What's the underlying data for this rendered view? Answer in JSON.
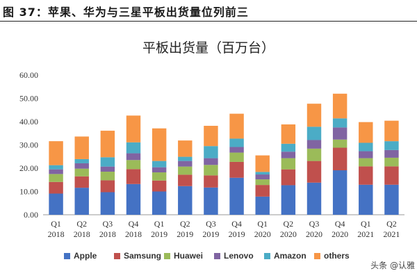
{
  "figure": {
    "title": "图 37：苹果、华为与三星平板出货量位列前三"
  },
  "watermark": "头条 @认雅",
  "chart_data": {
    "type": "bar",
    "stacked": true,
    "title": "平板出货量（百万台）",
    "xlabel": "",
    "ylabel": "",
    "ylim": [
      0,
      60
    ],
    "yticks": [
      "0.00",
      "10.00",
      "20.00",
      "30.00",
      "40.00",
      "50.00",
      "60.00"
    ],
    "grid": false,
    "legend_position": "bottom",
    "categories": [
      [
        "Q1",
        "2018"
      ],
      [
        "Q2",
        "2018"
      ],
      [
        "Q3",
        "2018"
      ],
      [
        "Q4",
        "2018"
      ],
      [
        "Q1",
        "2019"
      ],
      [
        "Q2",
        "2019"
      ],
      [
        "Q3",
        "2019"
      ],
      [
        "Q4",
        "2019"
      ],
      [
        "Q1",
        "2020"
      ],
      [
        "Q2",
        "2020"
      ],
      [
        "Q3",
        "2020"
      ],
      [
        "Q4",
        "2020"
      ],
      [
        "Q1",
        "2021"
      ],
      [
        "Q2",
        "2021"
      ]
    ],
    "series": [
      {
        "name": "Apple",
        "color": "#4472C4",
        "values": [
          9.1,
          11.6,
          9.7,
          13.2,
          10.0,
          12.3,
          11.7,
          15.9,
          7.8,
          12.7,
          13.8,
          19.1,
          12.9,
          12.9
        ]
      },
      {
        "name": "Samsung",
        "color": "#C0504D",
        "values": [
          5.0,
          4.9,
          5.1,
          6.4,
          4.7,
          4.9,
          5.2,
          6.8,
          5.0,
          6.8,
          9.3,
          9.7,
          7.9,
          7.9
        ]
      },
      {
        "name": "Huawei",
        "color": "#9BBB59",
        "values": [
          3.4,
          3.3,
          3.7,
          3.9,
          3.5,
          3.5,
          4.5,
          4.0,
          2.4,
          4.8,
          5.3,
          3.5,
          3.5,
          3.7
        ]
      },
      {
        "name": "Lenovo",
        "color": "#8064A2",
        "values": [
          2.0,
          2.3,
          2.2,
          2.9,
          2.2,
          2.4,
          2.9,
          2.4,
          2.1,
          2.8,
          3.7,
          5.2,
          3.0,
          3.3
        ]
      },
      {
        "name": "Amazon",
        "color": "#4BACC6",
        "values": [
          1.8,
          1.8,
          4.0,
          4.7,
          2.7,
          1.8,
          5.2,
          3.6,
          1.1,
          3.4,
          5.7,
          3.9,
          3.6,
          3.8
        ]
      },
      {
        "name": "others",
        "color": "#F79646",
        "values": [
          10.3,
          9.7,
          11.4,
          11.5,
          14.0,
          7.0,
          8.7,
          10.7,
          7.1,
          8.3,
          9.9,
          10.6,
          8.9,
          8.8
        ]
      }
    ]
  }
}
